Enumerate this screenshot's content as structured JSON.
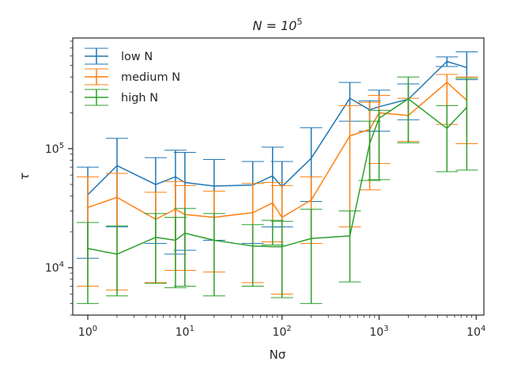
{
  "chart_data": {
    "type": "line",
    "title": "N = 10^5",
    "title_parts": {
      "base": "N = 10",
      "exp": "5"
    },
    "xlabel": "Nσ",
    "ylabel": "τ",
    "xscale": "log",
    "yscale": "log",
    "xlim": [
      0.7,
      12000
    ],
    "ylim": [
      4000,
      850000
    ],
    "xticks": [
      {
        "base": "10",
        "exp": "0",
        "value": 1
      },
      {
        "base": "10",
        "exp": "1",
        "value": 10
      },
      {
        "base": "10",
        "exp": "2",
        "value": 100
      },
      {
        "base": "10",
        "exp": "3",
        "value": 1000
      },
      {
        "base": "10",
        "exp": "4",
        "value": 10000
      }
    ],
    "yticks": [
      {
        "base": "10",
        "exp": "4",
        "value": 10000
      },
      {
        "base": "10",
        "exp": "5",
        "value": 100000
      }
    ],
    "grid": false,
    "legend_position": "top-left",
    "x": [
      1,
      2,
      5,
      8,
      10,
      20,
      50,
      80,
      100,
      200,
      500,
      800,
      1000,
      2000,
      5000,
      8000
    ],
    "series": [
      {
        "name": "low N",
        "color": "#1f77b4",
        "values": [
          41000,
          72000,
          50000,
          58000,
          52000,
          48500,
          49500,
          59000,
          48000,
          83000,
          265000,
          212000,
          225000,
          260000,
          540000,
          480000
        ],
        "err_low": [
          12000,
          22000,
          16000,
          13000,
          14000,
          17000,
          16000,
          22000,
          22000,
          36000,
          170000,
          140000,
          140000,
          175000,
          490000,
          380000
        ],
        "err_high": [
          70000,
          122000,
          84000,
          97000,
          93000,
          81000,
          78000,
          103000,
          78000,
          150000,
          360000,
          252000,
          310000,
          350000,
          590000,
          650000
        ]
      },
      {
        "name": "medium N",
        "color": "#ff7f0e",
        "values": [
          32000,
          39000,
          25500,
          31000,
          28000,
          26500,
          29000,
          35000,
          26500,
          37000,
          128000,
          145000,
          200000,
          190000,
          360000,
          255000
        ],
        "err_low": [
          7000,
          6500,
          7500,
          9500,
          9500,
          9200,
          7500,
          16500,
          6000,
          16000,
          22000,
          45000,
          75000,
          115000,
          160000,
          110000
        ],
        "err_high": [
          58000,
          62000,
          43000,
          53000,
          49000,
          44000,
          51000,
          52000,
          49000,
          58000,
          230000,
          245000,
          280000,
          265000,
          420000,
          400000
        ]
      },
      {
        "name": "high N",
        "color": "#2ca02c",
        "values": [
          14500,
          13000,
          18000,
          17000,
          19500,
          17000,
          15200,
          15000,
          15000,
          17600,
          18500,
          110000,
          180000,
          262000,
          148000,
          222000
        ],
        "err_low": [
          5000,
          5800,
          7400,
          6800,
          7000,
          5800,
          7000,
          15500,
          5600,
          5000,
          7600,
          54000,
          55000,
          112000,
          64000,
          66000
        ],
        "err_high": [
          24000,
          22500,
          28500,
          26500,
          31500,
          28500,
          23000,
          25000,
          24500,
          31000,
          30000,
          170000,
          210000,
          400000,
          230000,
          390000
        ]
      }
    ]
  }
}
